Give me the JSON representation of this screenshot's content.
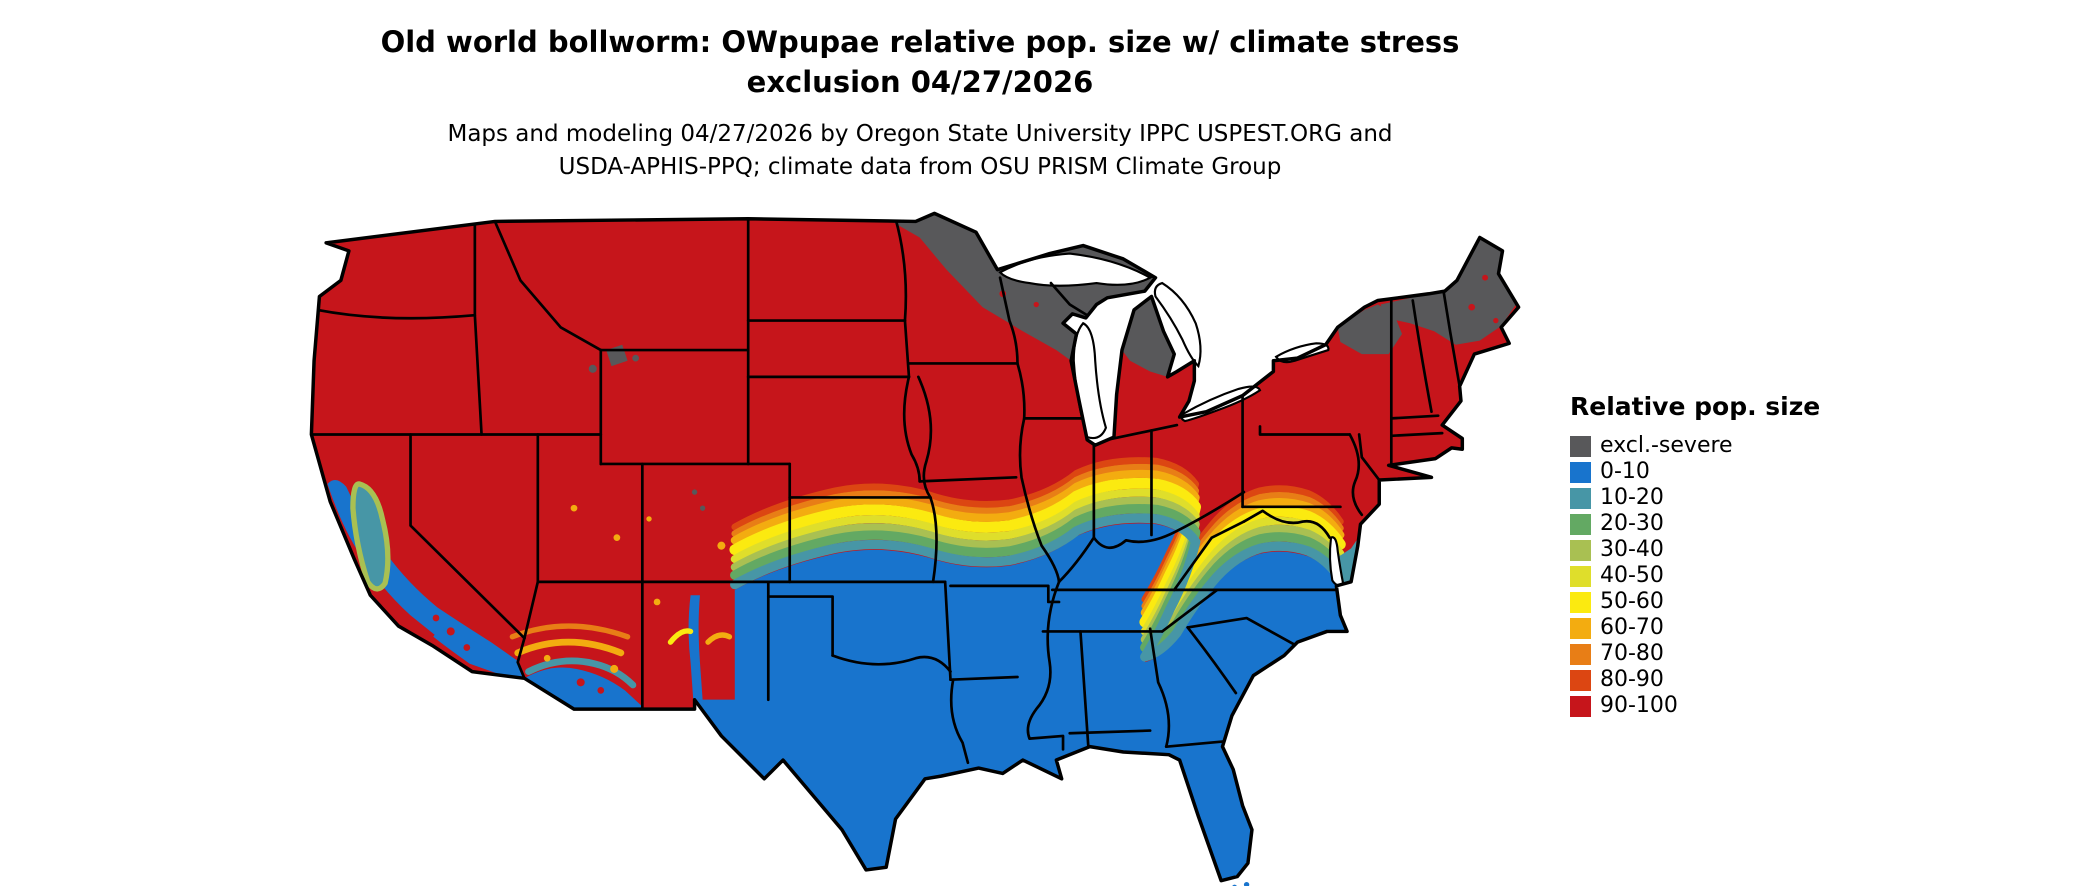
{
  "title": {
    "line1": "Old world bollworm: OWpupae relative pop. size w/ climate stress",
    "line2": "exclusion 04/27/2026"
  },
  "subtitle": {
    "line1": "Maps and modeling 04/27/2026 by Oregon State University IPPC USPEST.ORG and",
    "line2": "USDA-APHIS-PPQ; climate data from OSU PRISM Climate Group"
  },
  "legend": {
    "title": "Relative pop. size",
    "items": [
      {
        "label": "excl.-severe",
        "color": "#58585A"
      },
      {
        "label": "0-10",
        "color": "#1874CD"
      },
      {
        "label": "10-20",
        "color": "#4796A6"
      },
      {
        "label": "20-30",
        "color": "#63A963"
      },
      {
        "label": "30-40",
        "color": "#A9C052"
      },
      {
        "label": "40-50",
        "color": "#DFDE2B"
      },
      {
        "label": "50-60",
        "color": "#FBEA10"
      },
      {
        "label": "60-70",
        "color": "#F3AC10"
      },
      {
        "label": "70-80",
        "color": "#E87E16"
      },
      {
        "label": "80-90",
        "color": "#DC4612"
      },
      {
        "label": "90-100",
        "color": "#C6151B"
      }
    ]
  },
  "map": {
    "outline_color": "#000000",
    "water_color": "#FFFFFF"
  }
}
